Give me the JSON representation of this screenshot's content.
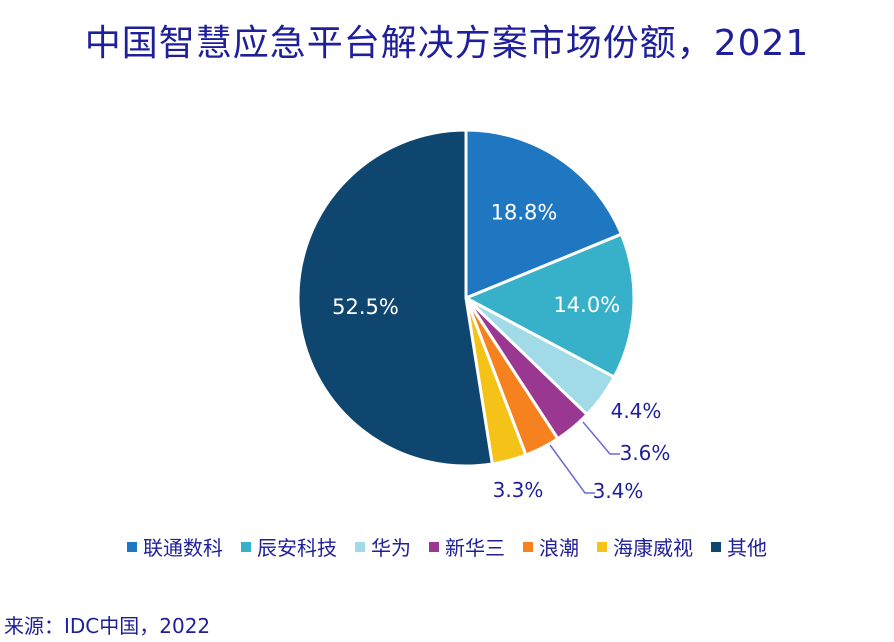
{
  "chart_data": {
    "type": "pie",
    "title": "中国智慧应急平台解决方案市场份额，2021",
    "slices": [
      {
        "name": "联通数科",
        "value": 18.8,
        "label": "18.8%",
        "color": "#1f77c2"
      },
      {
        "name": "辰安科技",
        "value": 14.0,
        "label": "14.0%",
        "color": "#37b1ca"
      },
      {
        "name": "华为",
        "value": 4.4,
        "label": "4.4%",
        "color": "#a2dbe8"
      },
      {
        "name": "新华三",
        "value": 3.6,
        "label": "3.6%",
        "color": "#9a3791"
      },
      {
        "name": "浪潮",
        "value": 3.4,
        "label": "3.4%",
        "color": "#f5821f"
      },
      {
        "name": "海康威视",
        "value": 3.3,
        "label": "3.3%",
        "color": "#f5c218"
      },
      {
        "name": "其他",
        "value": 52.5,
        "label": "52.5%",
        "color": "#0f4670"
      }
    ],
    "legend_position": "bottom",
    "source": "来源：IDC中国，2022"
  }
}
